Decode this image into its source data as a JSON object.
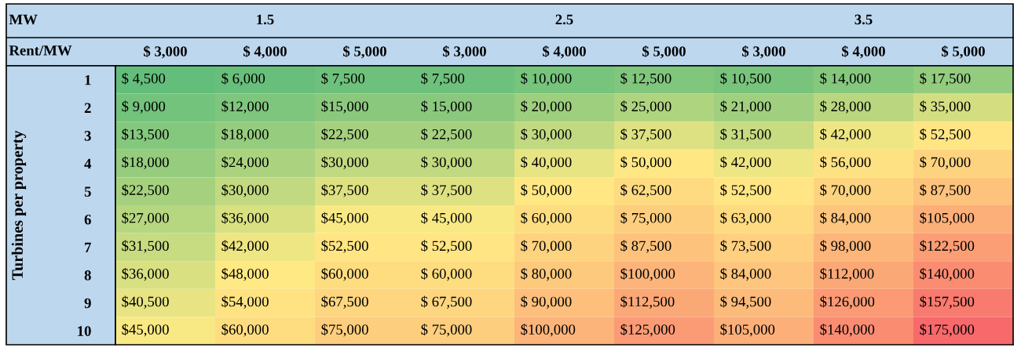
{
  "chart_data": {
    "type": "heatmap",
    "xlabel": "Rent/MW",
    "ylabel": "Turbines per property",
    "annotations": [
      "MW",
      "1.5",
      "2.5",
      "3.5"
    ],
    "categories": [
      "$ 3,000",
      "$ 4,000",
      "$ 5,000",
      "$ 3,000",
      "$ 4,000",
      "$ 5,000",
      "$ 3,000",
      "$ 4,000",
      "$ 5,000"
    ],
    "y_categories": [
      "1",
      "2",
      "3",
      "4",
      "5",
      "6",
      "7",
      "8",
      "9",
      "10"
    ],
    "cells": [
      [
        4500,
        6000,
        7500,
        7500,
        10000,
        12500,
        10500,
        14000,
        17500
      ],
      [
        9000,
        12000,
        15000,
        15000,
        20000,
        25000,
        21000,
        28000,
        35000
      ],
      [
        13500,
        18000,
        22500,
        22500,
        30000,
        37500,
        31500,
        42000,
        52500
      ],
      [
        18000,
        24000,
        30000,
        30000,
        40000,
        50000,
        42000,
        56000,
        70000
      ],
      [
        22500,
        30000,
        37500,
        37500,
        50000,
        62500,
        52500,
        70000,
        87500
      ],
      [
        27000,
        36000,
        45000,
        45000,
        60000,
        75000,
        63000,
        84000,
        105000
      ],
      [
        31500,
        42000,
        52500,
        52500,
        70000,
        87500,
        73500,
        98000,
        122500
      ],
      [
        36000,
        48000,
        60000,
        60000,
        80000,
        100000,
        84000,
        112000,
        140000
      ],
      [
        40500,
        54000,
        67500,
        67500,
        90000,
        112500,
        94500,
        126000,
        157500
      ],
      [
        45000,
        60000,
        75000,
        75000,
        100000,
        125000,
        105000,
        140000,
        175000
      ]
    ],
    "cell_labels": [
      [
        "$ 4,500",
        "$ 6,000",
        "$ 7,500",
        "$ 7,500",
        "$ 10,000",
        "$ 12,500",
        "$ 10,500",
        "$ 14,000",
        "$ 17,500"
      ],
      [
        "$ 9,000",
        "$12,000",
        "$15,000",
        "$ 15,000",
        "$ 20,000",
        "$ 25,000",
        "$ 21,000",
        "$ 28,000",
        "$ 35,000"
      ],
      [
        "$13,500",
        "$18,000",
        "$22,500",
        "$ 22,500",
        "$ 30,000",
        "$ 37,500",
        "$ 31,500",
        "$ 42,000",
        "$ 52,500"
      ],
      [
        "$18,000",
        "$24,000",
        "$30,000",
        "$ 30,000",
        "$ 40,000",
        "$ 50,000",
        "$ 42,000",
        "$ 56,000",
        "$ 70,000"
      ],
      [
        "$22,500",
        "$30,000",
        "$37,500",
        "$ 37,500",
        "$ 50,000",
        "$ 62,500",
        "$ 52,500",
        "$ 70,000",
        "$ 87,500"
      ],
      [
        "$27,000",
        "$36,000",
        "$45,000",
        "$ 45,000",
        "$ 60,000",
        "$ 75,000",
        "$ 63,000",
        "$ 84,000",
        "$105,000"
      ],
      [
        "$31,500",
        "$42,000",
        "$52,500",
        "$ 52,500",
        "$ 70,000",
        "$ 87,500",
        "$ 73,500",
        "$ 98,000",
        "$122,500"
      ],
      [
        "$36,000",
        "$48,000",
        "$60,000",
        "$ 60,000",
        "$ 80,000",
        "$100,000",
        "$ 84,000",
        "$112,000",
        "$140,000"
      ],
      [
        "$40,500",
        "$54,000",
        "$67,500",
        "$ 67,500",
        "$ 90,000",
        "$112,500",
        "$ 94,500",
        "$126,000",
        "$157,500"
      ],
      [
        "$45,000",
        "$60,000",
        "$75,000",
        "$ 75,000",
        "$100,000",
        "$125,000",
        "$105,000",
        "$140,000",
        "$175,000"
      ]
    ]
  }
}
